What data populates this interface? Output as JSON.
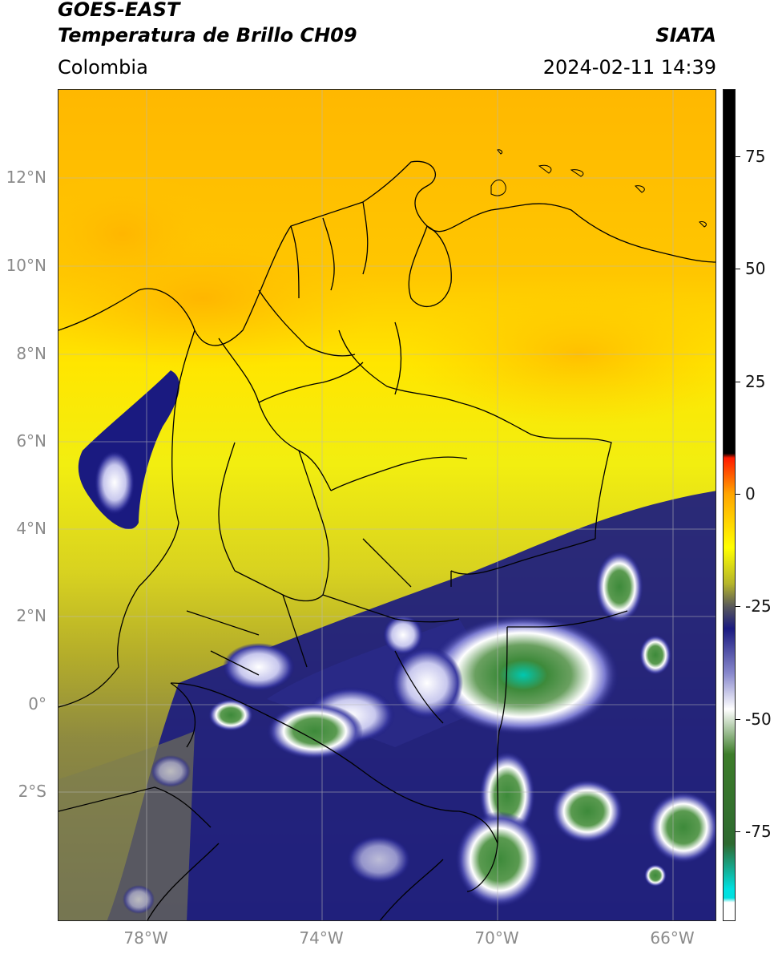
{
  "header": {
    "satellite": "GOES-EAST",
    "product": "Temperatura de Brillo CH09",
    "brand": "SIATA",
    "region": "Colombia",
    "timestamp": "2024-02-11 14:39"
  },
  "map": {
    "lat_range": [
      -5,
      14
    ],
    "lon_range": [
      -80,
      -65
    ],
    "gridlines": true,
    "lat_ticks": [
      "12°N",
      "10°N",
      "8°N",
      "6°N",
      "4°N",
      "2°N",
      "0°",
      "2°S"
    ],
    "lon_ticks": [
      "78°W",
      "74°W",
      "70°W",
      "66°W"
    ],
    "lat_tick_values": [
      12,
      10,
      8,
      6,
      4,
      2,
      0,
      -2
    ],
    "lon_tick_values": [
      -78,
      -74,
      -70,
      -66
    ],
    "borders": "Colombia departments and neighboring countries"
  },
  "colorbar": {
    "range": [
      -95,
      90
    ],
    "ticks": [
      {
        "label": "75",
        "value": 75
      },
      {
        "label": "50",
        "value": 50
      },
      {
        "label": "25",
        "value": 25
      },
      {
        "label": "0",
        "value": 0
      },
      {
        "label": "-25",
        "value": -25
      },
      {
        "label": "-50",
        "value": -50
      },
      {
        "label": "-75",
        "value": -75
      }
    ],
    "colors": {
      "black": "#000000",
      "red": "#ff1a00",
      "orange": "#ffa500",
      "yellow": "#ffff00",
      "olive": "#b5b52a",
      "navy": "#1a1a80",
      "white": "#ffffff",
      "green": "#3d7d2a",
      "cyan": "#00e0e0"
    }
  }
}
